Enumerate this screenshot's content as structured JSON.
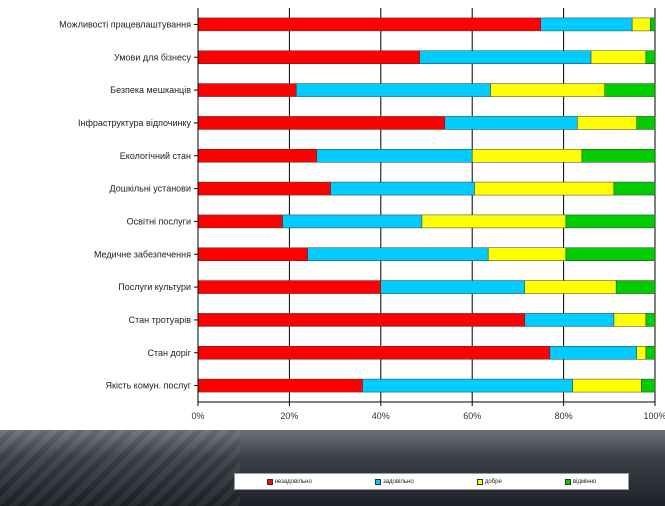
{
  "chart_data": {
    "type": "bar",
    "orientation": "horizontal",
    "stacked": "percent",
    "categories": [
      "Можливості працевлаштування",
      "Умови для бізнесу",
      "Безпека мешканців",
      "Інфраструктура відпочинку",
      "Екологічний стан",
      "Дошкільні установи",
      "Освітні послуги",
      "Медичне забезпечення",
      "Послуги культури",
      "Стан тротуарів",
      "Стан доріг",
      "Якість комун. послуг"
    ],
    "series": [
      {
        "name": "незадовільно",
        "color": "#ff0000",
        "values": [
          75,
          48.5,
          21.5,
          54,
          26,
          29,
          18.5,
          24,
          40,
          71.5,
          77,
          36
        ]
      },
      {
        "name": "задовільно",
        "color": "#00ccff",
        "values": [
          20,
          37.5,
          42.5,
          29,
          34,
          31.5,
          30.5,
          39.5,
          31.5,
          19.5,
          19,
          46
        ]
      },
      {
        "name": "добре",
        "color": "#ffff00",
        "values": [
          4,
          12,
          25,
          13,
          24,
          30.5,
          31.5,
          17,
          20,
          7,
          2,
          15
        ]
      },
      {
        "name": "відмінно",
        "color": "#00cc00",
        "values": [
          1,
          2,
          11,
          4,
          16,
          9,
          19.5,
          19.5,
          8.5,
          2,
          2,
          3
        ]
      }
    ],
    "x_ticks": [
      "0%",
      "20%",
      "40%",
      "60%",
      "80%",
      "100%"
    ],
    "xlim": [
      0,
      100
    ],
    "grid": true,
    "legend_position": "bottom",
    "title": "",
    "xlabel": "",
    "ylabel": ""
  },
  "colors": {
    "grid": "#000000",
    "bar_outline": "#333333"
  }
}
